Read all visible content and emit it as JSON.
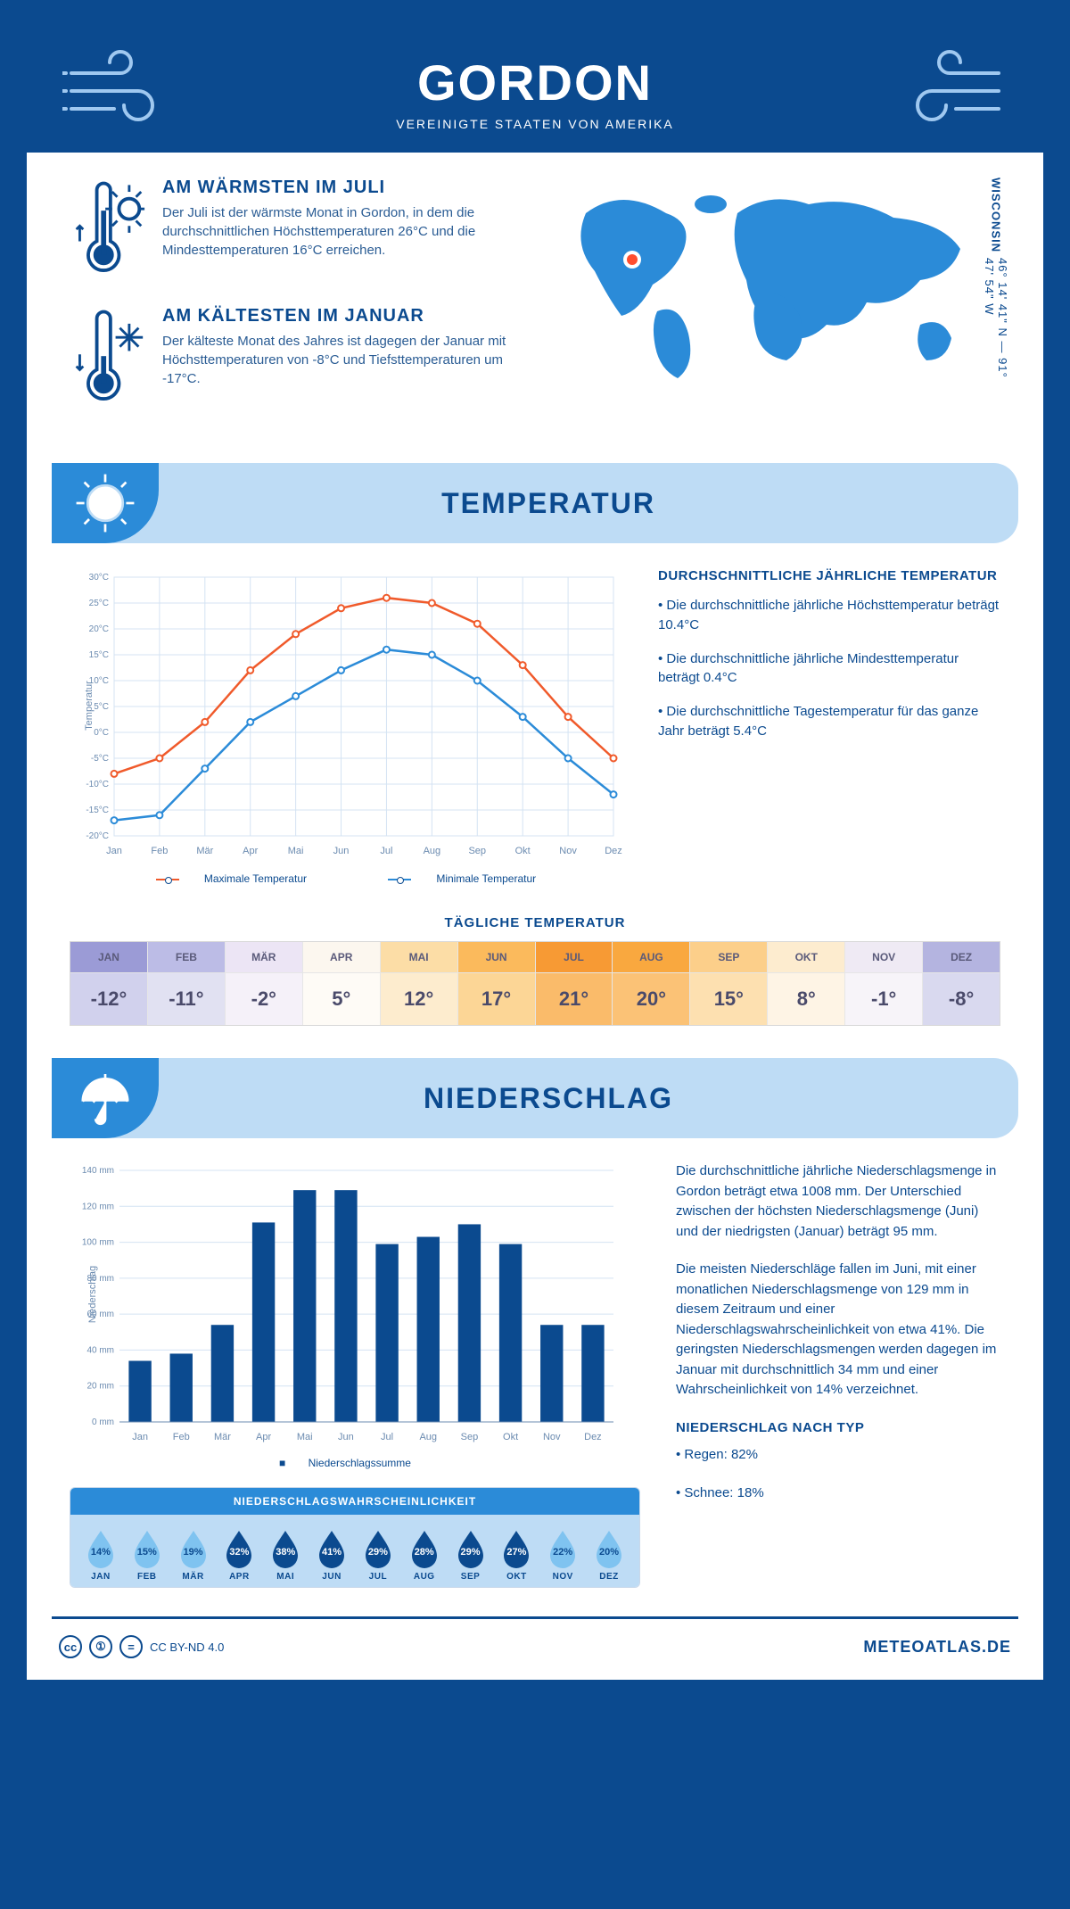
{
  "header": {
    "title": "GORDON",
    "subtitle": "VEREINIGTE STAATEN VON AMERIKA"
  },
  "location": {
    "state": "WISCONSIN",
    "coords": "46° 14' 41\" N — 91° 47' 54\" W",
    "marker_color": "#ff4d2e",
    "land_color": "#2b8bd8"
  },
  "facts": {
    "warm": {
      "title": "AM WÄRMSTEN IM JULI",
      "text": "Der Juli ist der wärmste Monat in Gordon, in dem die durchschnittlichen Höchsttemperaturen 26°C und die Mindesttemperaturen 16°C erreichen."
    },
    "cold": {
      "title": "AM KÄLTESTEN IM JANUAR",
      "text": "Der kälteste Monat des Jahres ist dagegen der Januar mit Höchsttemperaturen von -8°C und Tiefsttemperaturen um -17°C."
    }
  },
  "sections": {
    "temperature": "TEMPERATUR",
    "precipitation": "NIEDERSCHLAG"
  },
  "temperature_chart": {
    "type": "line",
    "y_axis_label": "Temperatur",
    "x_labels": [
      "Jan",
      "Feb",
      "Mär",
      "Apr",
      "Mai",
      "Jun",
      "Jul",
      "Aug",
      "Sep",
      "Okt",
      "Nov",
      "Dez"
    ],
    "y_min": -20,
    "y_max": 30,
    "y_step": 5,
    "y_unit": "°C",
    "grid_color": "#d4e3f3",
    "text_color": "#6b8bb0",
    "series_max": {
      "label": "Maximale Temperatur",
      "color": "#f05a2b",
      "values": [
        -8,
        -5,
        2,
        12,
        19,
        24,
        26,
        25,
        21,
        13,
        3,
        -5
      ]
    },
    "series_min": {
      "label": "Minimale Temperatur",
      "color": "#2b8bd8",
      "values": [
        -17,
        -16,
        -7,
        2,
        7,
        12,
        16,
        15,
        10,
        3,
        -5,
        -12
      ]
    }
  },
  "temperature_notes": {
    "heading": "DURCHSCHNITTLICHE JÄHRLICHE TEMPERATUR",
    "b1": "• Die durchschnittliche jährliche Höchsttemperatur beträgt 10.4°C",
    "b2": "• Die durchschnittliche jährliche Mindesttemperatur beträgt 0.4°C",
    "b3": "• Die durchschnittliche Tagestemperatur für das ganze Jahr beträgt 5.4°C"
  },
  "daily_temperature": {
    "title": "TÄGLICHE TEMPERATUR",
    "months": [
      "JAN",
      "FEB",
      "MÄR",
      "APR",
      "MAI",
      "JUN",
      "JUL",
      "AUG",
      "SEP",
      "OKT",
      "NOV",
      "DEZ"
    ],
    "values": [
      "-12°",
      "-11°",
      "-2°",
      "5°",
      "12°",
      "17°",
      "21°",
      "20°",
      "15°",
      "8°",
      "-1°",
      "-8°"
    ],
    "header_colors": [
      "#9b9bd6",
      "#bcbce6",
      "#ece5f5",
      "#fcf7ef",
      "#fcdda6",
      "#fbba5c",
      "#f79a34",
      "#f9a83f",
      "#fccf8a",
      "#fdeccf",
      "#efeaf4",
      "#b4b4e0"
    ],
    "cell_colors": [
      "#d1d1ed",
      "#e1e1f2",
      "#f5f1f9",
      "#fefbf6",
      "#fdecce",
      "#fcd696",
      "#fabb6a",
      "#fbc276",
      "#fde0b0",
      "#fef4e5",
      "#f7f4f9",
      "#d9d9ef"
    ]
  },
  "precip_chart": {
    "type": "bar",
    "y_axis_label": "Niederschlag",
    "legend": "Niederschlagssumme",
    "x_labels": [
      "Jan",
      "Feb",
      "Mär",
      "Apr",
      "Mai",
      "Jun",
      "Jul",
      "Aug",
      "Sep",
      "Okt",
      "Nov",
      "Dez"
    ],
    "y_min": 0,
    "y_max": 140,
    "y_step": 20,
    "y_unit": " mm",
    "grid_color": "#d4e3f3",
    "bar_color": "#0b4a8f",
    "values": [
      34,
      38,
      54,
      111,
      129,
      129,
      99,
      103,
      110,
      99,
      54,
      54
    ]
  },
  "precip_notes": {
    "p1": "Die durchschnittliche jährliche Niederschlagsmenge in Gordon beträgt etwa 1008 mm. Der Unterschied zwischen der höchsten Niederschlagsmenge (Juni) und der niedrigsten (Januar) beträgt 95 mm.",
    "p2": "Die meisten Niederschläge fallen im Juni, mit einer monatlichen Niederschlagsmenge von 129 mm in diesem Zeitraum und einer Niederschlagswahrscheinlichkeit von etwa 41%. Die geringsten Niederschlagsmengen werden dagegen im Januar mit durchschnittlich 34 mm und einer Wahrscheinlichkeit von 14% verzeichnet.",
    "heading": "NIEDERSCHLAG NACH TYP",
    "b1": "• Regen: 82%",
    "b2": "• Schnee: 18%"
  },
  "precip_prob": {
    "title": "NIEDERSCHLAGSWAHRSCHEINLICHKEIT",
    "months": [
      "JAN",
      "FEB",
      "MÄR",
      "APR",
      "MAI",
      "JUN",
      "JUL",
      "AUG",
      "SEP",
      "OKT",
      "NOV",
      "DEZ"
    ],
    "values": [
      14,
      15,
      19,
      32,
      38,
      41,
      29,
      28,
      29,
      27,
      22,
      20
    ],
    "light_color": "#7fc3f0",
    "dark_color": "#0b4a8f",
    "threshold": 25
  },
  "footer": {
    "license": "CC BY-ND 4.0",
    "brand": "METEOATLAS.DE"
  }
}
